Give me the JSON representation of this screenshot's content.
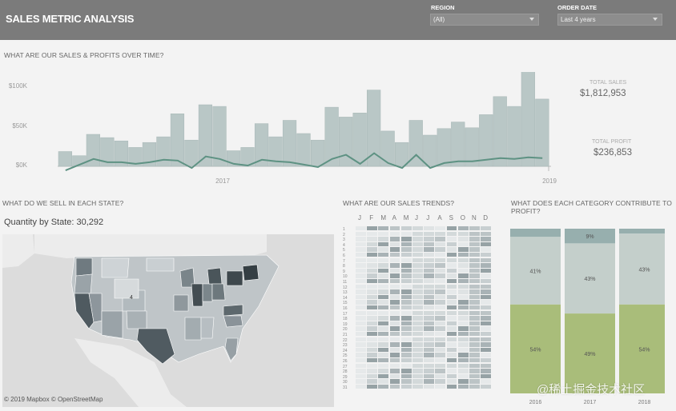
{
  "app": {
    "title": "SALES METRIC ANALYSIS"
  },
  "filters": {
    "region": {
      "label": "REGION",
      "value": "(All)"
    },
    "order_date": {
      "label": "ORDER DATE",
      "value": "Last 4 years"
    }
  },
  "sales_section": {
    "title": "WHAT ARE OUR SALES & PROFITS OVER TIME?",
    "kpis": {
      "total_sales_label": "TOTAL SALES",
      "total_sales_value": "$1,812,953",
      "total_profit_label": "TOTAL PROFIT",
      "total_profit_value": "$236,853"
    }
  },
  "state_section": {
    "title": "WHAT DO WE SELL IN EACH STATE?",
    "caption": "Quantity by State: 30,292",
    "map_label": "4",
    "attribution": "© 2019 Mapbox © OpenStreetMap"
  },
  "trends_section": {
    "title": "WHAT ARE OUR SALES TRENDS?",
    "months": [
      "J",
      "F",
      "M",
      "A",
      "M",
      "J",
      "J",
      "A",
      "S",
      "O",
      "N",
      "D"
    ],
    "days": [
      "1",
      "2",
      "3",
      "4",
      "5",
      "6",
      "7",
      "8",
      "9",
      "10",
      "11",
      "12",
      "13",
      "14",
      "15",
      "16",
      "17",
      "18",
      "19",
      "20",
      "21",
      "22",
      "23",
      "24",
      "25",
      "26",
      "27",
      "28",
      "29",
      "30",
      "31"
    ]
  },
  "category_section": {
    "title_line1": "WHAT DOES EACH CATEGORY CONTRIBUTE TO",
    "title_line2": "PROFIT?"
  },
  "watermark": "@稀土掘金技术社区",
  "colors": {
    "bar": "#b9c7c6",
    "bar_stroke": "#a7b7b6",
    "profit_line": "#5e9283",
    "cat_top": "#97afae",
    "cat_mid": "#c4cfcb",
    "cat_bottom": "#a9bd7a"
  },
  "chart_data": [
    {
      "type": "bar",
      "title": "WHAT ARE OUR SALES & PROFITS OVER TIME?",
      "x_tick_labels": [
        "2017",
        "2019"
      ],
      "y_tick_labels": [
        "$0K",
        "$50K",
        "$100K"
      ],
      "ylim": [
        0,
        115000
      ],
      "series": [
        {
          "name": "Sales",
          "values": [
            18000,
            13000,
            39000,
            35000,
            31000,
            23000,
            29000,
            36000,
            64000,
            32000,
            75000,
            73000,
            19000,
            23000,
            52000,
            36000,
            56000,
            40000,
            32000,
            72000,
            60000,
            65000,
            93000,
            43000,
            29000,
            56000,
            38000,
            46000,
            54000,
            47000,
            63000,
            85000,
            73000,
            118000,
            82000
          ]
        },
        {
          "name": "Profit",
          "values": [
            -5000,
            2000,
            9000,
            5000,
            5000,
            3000,
            5000,
            8000,
            7000,
            -2000,
            12000,
            9000,
            3000,
            1000,
            8000,
            6000,
            5000,
            2000,
            -1000,
            9000,
            14000,
            3000,
            16000,
            4000,
            -2000,
            14000,
            -2000,
            4000,
            6000,
            6000,
            8000,
            10000,
            9000,
            11000,
            10000
          ]
        }
      ]
    },
    {
      "type": "bar",
      "title_line1": "WHAT DOES EACH CATEGORY CONTRIBUTE TO",
      "title_line2": "PROFIT?",
      "categories": [
        "2016",
        "2017",
        "2018"
      ],
      "stacked": true,
      "segments": [
        {
          "labels": [
            "",
            "9%",
            ""
          ],
          "values": [
            5,
            9,
            3
          ]
        },
        {
          "labels": [
            "41%",
            "43%",
            "43%"
          ],
          "values": [
            41,
            43,
            43
          ]
        },
        {
          "labels": [
            "54%",
            "49%",
            "54%"
          ],
          "values": [
            54,
            49,
            54
          ]
        }
      ]
    }
  ]
}
